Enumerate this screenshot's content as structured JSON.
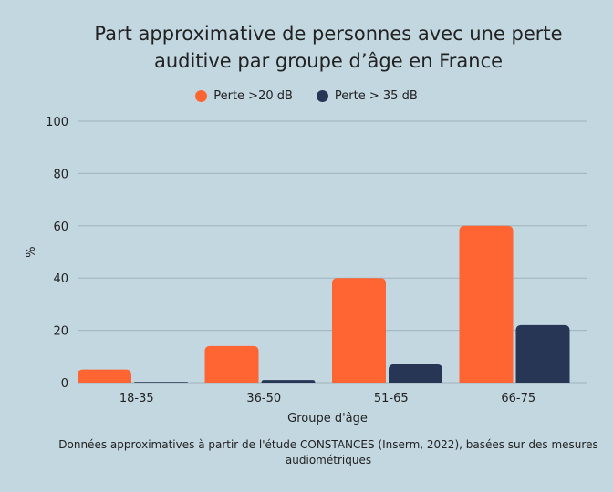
{
  "chart_data": {
    "type": "bar",
    "title": "Part approximative de personnes avec une perte auditive par groupe d’âge en France",
    "xlabel": "Groupe d'âge",
    "ylabel": "%",
    "ylim": [
      0,
      100
    ],
    "yticks": [
      0,
      20,
      40,
      60,
      80,
      100
    ],
    "grid": true,
    "legend_position": "top",
    "categories": [
      "18-35",
      "36-50",
      "51-65",
      "66-75"
    ],
    "series": [
      {
        "name": "Perte >20 dB",
        "color": "#ff6433",
        "values": [
          5,
          14,
          40,
          60
        ]
      },
      {
        "name": "Perte > 35 dB",
        "color": "#273654",
        "values": [
          0.2,
          1,
          7,
          22
        ]
      }
    ],
    "note": "Données approximatives à partir de l'étude CONSTANCES (Inserm, 2022), basées sur des mesures audiométriques"
  }
}
